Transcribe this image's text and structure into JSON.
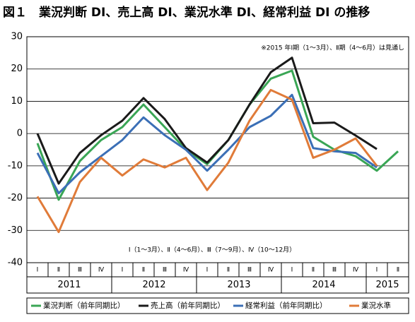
{
  "chart_data": {
    "type": "line",
    "title": "図１　業況判断 DI、売上高 DI、業況水準 DI、経常利益 DI の推移",
    "annotations": [
      "※2015 年Ⅰ期（1～3月）、Ⅱ期（4～6月）は見通し",
      "Ⅰ（1～3月）、Ⅱ（4～6月）、Ⅲ（7～9月）、Ⅳ（10～12月）"
    ],
    "categories": [
      "Ⅰ",
      "Ⅱ",
      "Ⅲ",
      "Ⅳ",
      "Ⅰ",
      "Ⅱ",
      "Ⅲ",
      "Ⅳ",
      "Ⅰ",
      "Ⅱ",
      "Ⅲ",
      "Ⅳ",
      "Ⅰ",
      "Ⅱ",
      "Ⅲ",
      "Ⅳ",
      "Ⅰ",
      "Ⅱ"
    ],
    "years": [
      "2011",
      "2012",
      "2013",
      "2014",
      "2015"
    ],
    "ylim": [
      -40,
      30
    ],
    "yticks": [
      -40,
      -30,
      -20,
      -10,
      0,
      10,
      20,
      30
    ],
    "grid": true,
    "series": [
      {
        "name": "業況判断（前年同期比）",
        "color": "#3aa655",
        "values": [
          -3,
          -20.5,
          -8.5,
          -2,
          2,
          9,
          2,
          -5,
          -9.5,
          -2,
          9,
          17,
          19.5,
          -1,
          -5,
          -7,
          -11.5,
          -5.5
        ]
      },
      {
        "name": "売上高（前年同期比）",
        "color": "#1a1a1a",
        "values": [
          0,
          -15.5,
          -6,
          -0.5,
          4,
          11,
          4.5,
          -4.5,
          -9,
          -2,
          9,
          19,
          23.5,
          3.2,
          3.4,
          -0.6,
          -4.8,
          null
        ]
      },
      {
        "name": "経常利益（前年同期比）",
        "color": "#3b6fb6",
        "values": [
          -6,
          -18.5,
          -12,
          -7,
          -2,
          5,
          -0.5,
          -5,
          -11.5,
          -5,
          2,
          5.5,
          12,
          -4.5,
          -5.5,
          -6,
          -10.5,
          null
        ]
      },
      {
        "name": "業況水準",
        "color": "#e07b39",
        "values": [
          -19.5,
          -30.5,
          -15,
          -7.5,
          -13,
          -8,
          -10.5,
          -7.5,
          -17.5,
          -9,
          4,
          13.5,
          10.5,
          -7.5,
          -5,
          -1.5,
          -10,
          null
        ]
      }
    ]
  }
}
